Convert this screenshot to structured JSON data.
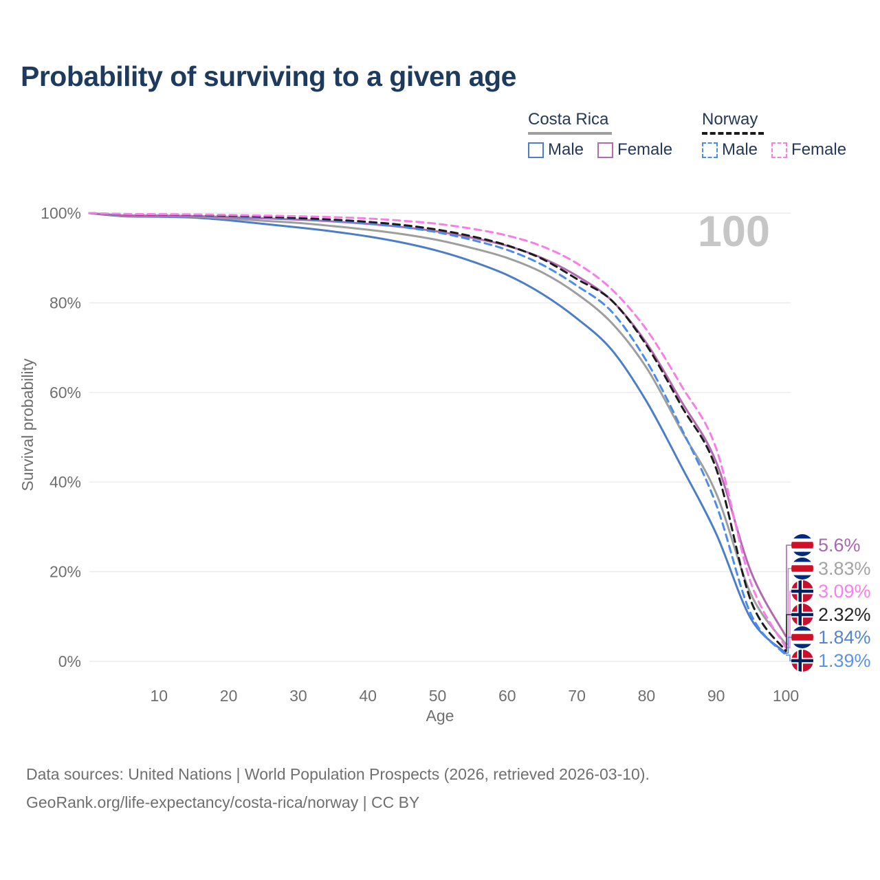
{
  "title": "Probability of surviving to a given age",
  "colors": {
    "title_text": "#1e3a5c",
    "legend_text": "#24395a",
    "axis_text": "#6f6f6f",
    "grid": "#ebebee",
    "watermark_text": "#c6c6c6",
    "background": "#ffffff"
  },
  "legend": {
    "groups": [
      {
        "label": "Costa Rica",
        "underline_style": "solid",
        "underline_color": "#9e9e9e",
        "items": [
          {
            "label": "Male",
            "swatch_color": "#4b7dc8",
            "swatch_style": "solid"
          },
          {
            "label": "Female",
            "swatch_color": "#b269b0",
            "swatch_style": "solid"
          }
        ]
      },
      {
        "label": "Norway",
        "underline_style": "dashed",
        "underline_color": "#1a1a1a",
        "items": [
          {
            "label": "Male",
            "swatch_color": "#4a8ceb",
            "swatch_style": "dashed"
          },
          {
            "label": "Female",
            "swatch_color": "#f97ce8",
            "swatch_style": "dashed"
          }
        ]
      }
    ]
  },
  "chart_data": {
    "type": "line",
    "title": "Probability of surviving to a given age",
    "xlabel": "Age",
    "ylabel": "Survival probability",
    "xlim": [
      0,
      100
    ],
    "ylim": [
      0,
      100
    ],
    "grid": "horizontal",
    "legend_position": "top-right",
    "watermark": "100",
    "x_ticks": [
      10,
      20,
      30,
      40,
      50,
      60,
      70,
      80,
      90,
      100
    ],
    "y_ticks": [
      {
        "value": 0,
        "label": "0%"
      },
      {
        "value": 20,
        "label": "20%"
      },
      {
        "value": 40,
        "label": "40%"
      },
      {
        "value": 60,
        "label": "60%"
      },
      {
        "value": 80,
        "label": "80%"
      },
      {
        "value": 100,
        "label": "100%"
      }
    ],
    "ages": [
      0,
      5,
      10,
      15,
      20,
      25,
      30,
      35,
      40,
      45,
      50,
      55,
      60,
      65,
      70,
      75,
      80,
      85,
      90,
      95,
      100
    ],
    "series": [
      {
        "name": "Costa Rica Male",
        "country": "Costa Rica",
        "sex": "Male",
        "color": "#4b7dc8",
        "dash": false,
        "values": [
          100,
          99.3,
          99.2,
          99.0,
          98.4,
          97.6,
          96.8,
          95.9,
          94.8,
          93.4,
          91.6,
          89.2,
          86.2,
          82.0,
          76.5,
          69.5,
          58.0,
          43.5,
          28.5,
          9.5,
          1.84
        ]
      },
      {
        "name": "Costa Rica",
        "country": "Costa Rica",
        "sex": "Both",
        "color": "#9e9e9e",
        "dash": false,
        "values": [
          100,
          99.4,
          99.35,
          99.2,
          98.8,
          98.3,
          97.8,
          97.1,
          96.3,
          95.3,
          94.0,
          92.2,
          90.0,
          86.8,
          82.0,
          75.5,
          65.5,
          51.5,
          37.5,
          15.0,
          3.83
        ]
      },
      {
        "name": "Costa Rica Female",
        "country": "Costa Rica",
        "sex": "Female",
        "color": "#b269b0",
        "dash": false,
        "values": [
          100,
          99.5,
          99.45,
          99.35,
          99.1,
          98.85,
          98.55,
          98.15,
          97.6,
          96.9,
          95.9,
          94.5,
          92.7,
          90.0,
          86.0,
          80.5,
          71.0,
          58.0,
          44.5,
          20.0,
          5.6
        ]
      },
      {
        "name": "Norway Male",
        "country": "Norway",
        "sex": "Male",
        "color": "#4a8ceb",
        "dash": true,
        "values": [
          100,
          99.7,
          99.65,
          99.55,
          99.3,
          99.0,
          98.7,
          98.3,
          97.7,
          96.9,
          95.7,
          94.0,
          91.8,
          88.5,
          83.8,
          78.0,
          67.0,
          52.0,
          35.0,
          10.5,
          1.39
        ]
      },
      {
        "name": "Norway",
        "country": "Norway",
        "sex": "Both",
        "color": "#1c1c1c",
        "dash": true,
        "values": [
          100,
          99.75,
          99.7,
          99.6,
          99.45,
          99.2,
          98.9,
          98.55,
          98.05,
          97.35,
          96.3,
          94.8,
          92.8,
          89.8,
          85.3,
          80.5,
          70.5,
          57.0,
          43.0,
          13.5,
          2.32
        ]
      },
      {
        "name": "Norway Female",
        "country": "Norway",
        "sex": "Female",
        "color": "#f97ce8",
        "dash": true,
        "values": [
          100,
          99.8,
          99.75,
          99.7,
          99.6,
          99.45,
          99.3,
          99.1,
          98.8,
          98.3,
          97.6,
          96.5,
          95.0,
          92.6,
          88.8,
          83.0,
          74.0,
          61.5,
          47.5,
          17.5,
          3.09
        ]
      }
    ],
    "end_labels": [
      {
        "series": "Costa Rica Female",
        "label": "5.6%",
        "color": "#a868ae",
        "flag": "costa-rica"
      },
      {
        "series": "Costa Rica",
        "label": "3.83%",
        "color": "#a3a3a3",
        "flag": "costa-rica"
      },
      {
        "series": "Norway Female",
        "label": "3.09%",
        "color": "#f87ff2",
        "flag": "norway"
      },
      {
        "series": "Norway",
        "label": "2.32%",
        "color": "#262626",
        "flag": "norway"
      },
      {
        "series": "Costa Rica Male",
        "label": "1.84%",
        "color": "#5585d0",
        "flag": "costa-rica"
      },
      {
        "series": "Norway Male",
        "label": "1.39%",
        "color": "#5b93ef",
        "flag": "norway"
      }
    ],
    "flag_colors": {
      "costa_rica_blue": "#002b7f",
      "costa_rica_red": "#ce1126",
      "norway_red": "#c8102e",
      "norway_blue": "#00205b"
    }
  },
  "footer": {
    "line1": "Data sources: United Nations | World Population Prospects (2026, retrieved 2026-03-10).",
    "line2": "GeoRank.org/life-expectancy/costa-rica/norway | CC BY"
  }
}
